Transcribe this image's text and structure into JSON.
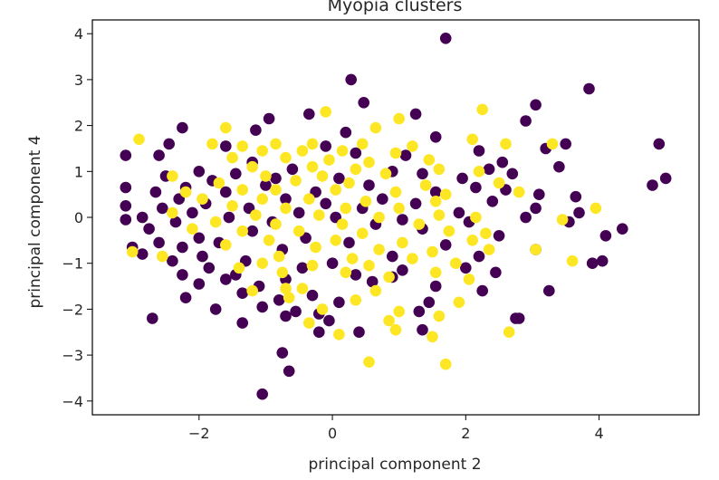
{
  "chart_data": {
    "type": "scatter",
    "title": "Myopia clusters",
    "xlabel": "principal component 2",
    "ylabel": "principal component 4",
    "xlim": [
      -3.6,
      5.5
    ],
    "ylim": [
      -4.3,
      4.3
    ],
    "x_ticks": [
      -2,
      0,
      2,
      4
    ],
    "x_tick_labels": [
      "−2",
      "0",
      "2",
      "4"
    ],
    "y_ticks": [
      4,
      3,
      2,
      1,
      0,
      -1,
      -2,
      -3,
      -4
    ],
    "y_tick_labels": [
      "4",
      "3",
      "2",
      "1",
      "0",
      "−1",
      "−2",
      "−3",
      "−4"
    ],
    "grid": false,
    "colors": {
      "cluster_0": "#440154",
      "cluster_1": "#fde725",
      "axis": "#000000"
    },
    "series": [
      {
        "color": "#440154",
        "points": [
          [
            1.7,
            3.9
          ],
          [
            0.28,
            3.0
          ],
          [
            3.85,
            2.8
          ],
          [
            0.47,
            2.5
          ],
          [
            3.05,
            2.45
          ],
          [
            -0.35,
            2.25
          ],
          [
            1.25,
            2.25
          ],
          [
            2.9,
            2.1
          ],
          [
            -0.95,
            2.15
          ],
          [
            -2.25,
            1.95
          ],
          [
            -1.15,
            1.9
          ],
          [
            0.2,
            1.85
          ],
          [
            1.55,
            1.75
          ],
          [
            4.9,
            1.6
          ],
          [
            3.5,
            1.6
          ],
          [
            -2.45,
            1.6
          ],
          [
            3.2,
            1.5
          ],
          [
            -0.1,
            1.55
          ],
          [
            -1.6,
            1.55
          ],
          [
            2.2,
            1.45
          ],
          [
            -2.6,
            1.35
          ],
          [
            -3.1,
            1.35
          ],
          [
            0.35,
            1.4
          ],
          [
            1.1,
            1.35
          ],
          [
            2.55,
            1.2
          ],
          [
            -1.2,
            1.2
          ],
          [
            3.4,
            1.1
          ],
          [
            2.35,
            1.05
          ],
          [
            -2.0,
            1.0
          ],
          [
            -0.6,
            1.05
          ],
          [
            0.9,
            1.0
          ],
          [
            -1.45,
            0.95
          ],
          [
            1.35,
            0.95
          ],
          [
            2.7,
            0.95
          ],
          [
            -2.5,
            0.9
          ],
          [
            -0.85,
            0.85
          ],
          [
            0.1,
            0.85
          ],
          [
            -1.8,
            0.8
          ],
          [
            1.95,
            0.85
          ],
          [
            5.0,
            0.85
          ],
          [
            -3.1,
            0.65
          ],
          [
            -2.2,
            0.65
          ],
          [
            -1.0,
            0.7
          ],
          [
            0.55,
            0.7
          ],
          [
            2.15,
            0.65
          ],
          [
            4.8,
            0.7
          ],
          [
            2.6,
            0.6
          ],
          [
            -2.65,
            0.55
          ],
          [
            -1.6,
            0.55
          ],
          [
            -0.25,
            0.55
          ],
          [
            1.55,
            0.55
          ],
          [
            3.1,
            0.5
          ],
          [
            3.65,
            0.45
          ],
          [
            -2.3,
            0.4
          ],
          [
            -0.7,
            0.4
          ],
          [
            0.75,
            0.4
          ],
          [
            2.4,
            0.35
          ],
          [
            -1.9,
            0.3
          ],
          [
            -0.1,
            0.3
          ],
          [
            1.25,
            0.3
          ],
          [
            -3.1,
            0.25
          ],
          [
            -2.55,
            0.2
          ],
          [
            -1.25,
            0.2
          ],
          [
            0.45,
            0.2
          ],
          [
            3.05,
            0.2
          ],
          [
            -2.1,
            0.1
          ],
          [
            -0.5,
            0.1
          ],
          [
            1.9,
            0.1
          ],
          [
            3.7,
            0.1
          ],
          [
            -2.85,
            0.0
          ],
          [
            -1.55,
            0.0
          ],
          [
            0.05,
            0.0
          ],
          [
            1.05,
            -0.05
          ],
          [
            2.9,
            0.0
          ],
          [
            -3.1,
            -0.05
          ],
          [
            -2.35,
            -0.1
          ],
          [
            -0.9,
            -0.1
          ],
          [
            0.65,
            -0.15
          ],
          [
            2.05,
            -0.1
          ],
          [
            3.55,
            -0.1
          ],
          [
            -2.75,
            -0.25
          ],
          [
            -1.2,
            -0.3
          ],
          [
            1.35,
            -0.25
          ],
          [
            4.35,
            -0.25
          ],
          [
            -2.0,
            -0.45
          ],
          [
            -0.4,
            -0.45
          ],
          [
            2.5,
            -0.4
          ],
          [
            4.1,
            -0.4
          ],
          [
            -2.6,
            -0.55
          ],
          [
            -1.7,
            -0.55
          ],
          [
            0.25,
            -0.55
          ],
          [
            1.7,
            -0.6
          ],
          [
            -3.0,
            -0.65
          ],
          [
            -2.25,
            -0.65
          ],
          [
            -0.75,
            -0.7
          ],
          [
            3.05,
            -0.7
          ],
          [
            -2.85,
            -0.8
          ],
          [
            -1.95,
            -0.85
          ],
          [
            0.9,
            -0.85
          ],
          [
            2.2,
            -0.85
          ],
          [
            -2.4,
            -0.95
          ],
          [
            -1.3,
            -0.95
          ],
          [
            0.0,
            -1.0
          ],
          [
            3.9,
            -1.0
          ],
          [
            4.05,
            -0.95
          ],
          [
            -1.85,
            -1.1
          ],
          [
            -0.45,
            -1.1
          ],
          [
            1.05,
            -1.15
          ],
          [
            2.0,
            -1.1
          ],
          [
            -2.25,
            -1.25
          ],
          [
            -1.45,
            -1.25
          ],
          [
            0.35,
            -1.25
          ],
          [
            2.45,
            -1.2
          ],
          [
            -1.6,
            -1.35
          ],
          [
            -0.7,
            -1.35
          ],
          [
            0.6,
            -1.4
          ],
          [
            -2.0,
            -1.45
          ],
          [
            -1.1,
            -1.5
          ],
          [
            1.55,
            -1.5
          ],
          [
            3.25,
            -1.6
          ],
          [
            -1.35,
            -1.65
          ],
          [
            -0.3,
            -1.7
          ],
          [
            2.25,
            -1.6
          ],
          [
            -2.2,
            -1.75
          ],
          [
            -0.8,
            -1.8
          ],
          [
            0.1,
            -1.85
          ],
          [
            1.45,
            -1.85
          ],
          [
            -1.05,
            -1.95
          ],
          [
            -0.55,
            -2.05
          ],
          [
            -1.75,
            -2.0
          ],
          [
            -0.2,
            -2.1
          ],
          [
            1.3,
            -2.05
          ],
          [
            2.8,
            -2.2
          ],
          [
            -2.7,
            -2.2
          ],
          [
            -0.7,
            -2.15
          ],
          [
            -1.35,
            -2.3
          ],
          [
            2.75,
            -2.2
          ],
          [
            -0.2,
            -2.5
          ],
          [
            0.4,
            -2.5
          ],
          [
            1.35,
            -2.45
          ],
          [
            -0.75,
            -2.95
          ],
          [
            -0.65,
            -3.35
          ],
          [
            -1.05,
            -3.85
          ],
          [
            -0.05,
            -2.25
          ],
          [
            0.9,
            -1.3
          ]
        ]
      },
      {
        "color": "#fde725",
        "points": [
          [
            -0.1,
            2.3
          ],
          [
            2.25,
            2.35
          ],
          [
            1.0,
            2.15
          ],
          [
            -1.6,
            1.95
          ],
          [
            0.65,
            1.95
          ],
          [
            2.1,
            1.7
          ],
          [
            -2.9,
            1.7
          ],
          [
            -1.8,
            1.6
          ],
          [
            -1.35,
            1.55
          ],
          [
            -0.85,
            1.6
          ],
          [
            -0.3,
            1.6
          ],
          [
            0.45,
            1.6
          ],
          [
            1.2,
            1.55
          ],
          [
            2.6,
            1.6
          ],
          [
            3.3,
            1.6
          ],
          [
            -1.05,
            1.45
          ],
          [
            -0.45,
            1.45
          ],
          [
            0.15,
            1.45
          ],
          [
            0.95,
            1.4
          ],
          [
            -1.5,
            1.3
          ],
          [
            -0.7,
            1.3
          ],
          [
            -0.05,
            1.25
          ],
          [
            0.55,
            1.2
          ],
          [
            1.45,
            1.25
          ],
          [
            -1.2,
            1.1
          ],
          [
            -0.3,
            1.1
          ],
          [
            0.35,
            1.05
          ],
          [
            1.6,
            1.05
          ],
          [
            2.2,
            1.0
          ],
          [
            -2.4,
            0.9
          ],
          [
            -1.0,
            0.9
          ],
          [
            -0.15,
            0.9
          ],
          [
            0.8,
            0.95
          ],
          [
            -1.7,
            0.75
          ],
          [
            -0.55,
            0.8
          ],
          [
            0.25,
            0.75
          ],
          [
            1.4,
            0.7
          ],
          [
            2.5,
            0.75
          ],
          [
            -2.2,
            0.55
          ],
          [
            -1.35,
            0.6
          ],
          [
            -0.85,
            0.6
          ],
          [
            0.05,
            0.6
          ],
          [
            0.95,
            0.55
          ],
          [
            1.7,
            0.5
          ],
          [
            2.8,
            0.55
          ],
          [
            -1.95,
            0.4
          ],
          [
            -1.05,
            0.4
          ],
          [
            -0.35,
            0.4
          ],
          [
            0.5,
            0.35
          ],
          [
            1.55,
            0.35
          ],
          [
            -1.5,
            0.25
          ],
          [
            -0.7,
            0.2
          ],
          [
            0.2,
            0.2
          ],
          [
            1.0,
            0.2
          ],
          [
            3.95,
            0.2
          ],
          [
            -2.4,
            0.1
          ],
          [
            -1.15,
            0.05
          ],
          [
            -0.2,
            0.05
          ],
          [
            0.7,
            0.0
          ],
          [
            1.6,
            0.05
          ],
          [
            2.15,
            0.0
          ],
          [
            -1.75,
            -0.1
          ],
          [
            -0.85,
            -0.15
          ],
          [
            0.15,
            -0.15
          ],
          [
            1.3,
            -0.15
          ],
          [
            3.45,
            -0.05
          ],
          [
            -2.1,
            -0.25
          ],
          [
            -1.35,
            -0.3
          ],
          [
            -0.5,
            -0.3
          ],
          [
            0.45,
            -0.35
          ],
          [
            1.75,
            -0.3
          ],
          [
            2.3,
            -0.35
          ],
          [
            -0.95,
            -0.5
          ],
          [
            0.05,
            -0.5
          ],
          [
            1.05,
            -0.55
          ],
          [
            2.1,
            -0.5
          ],
          [
            -1.6,
            -0.6
          ],
          [
            -0.25,
            -0.65
          ],
          [
            0.7,
            -0.7
          ],
          [
            1.5,
            -0.75
          ],
          [
            2.35,
            -0.7
          ],
          [
            3.05,
            -0.7
          ],
          [
            -0.8,
            -0.85
          ],
          [
            0.3,
            -0.9
          ],
          [
            1.2,
            -0.9
          ],
          [
            -3.0,
            -0.75
          ],
          [
            -2.55,
            -0.85
          ],
          [
            -1.05,
            -1.0
          ],
          [
            -0.3,
            -1.05
          ],
          [
            0.55,
            -1.05
          ],
          [
            1.85,
            -1.0
          ],
          [
            3.6,
            -0.95
          ],
          [
            -1.4,
            -1.1
          ],
          [
            0.2,
            -1.2
          ],
          [
            1.55,
            -1.2
          ],
          [
            -0.75,
            -1.2
          ],
          [
            0.85,
            -1.3
          ],
          [
            2.05,
            -1.35
          ],
          [
            -1.2,
            -1.6
          ],
          [
            -0.45,
            -1.55
          ],
          [
            0.65,
            -1.6
          ],
          [
            -0.65,
            -1.75
          ],
          [
            0.35,
            -1.8
          ],
          [
            1.9,
            -1.85
          ],
          [
            -0.15,
            -2.0
          ],
          [
            1.0,
            -2.05
          ],
          [
            -0.35,
            -2.3
          ],
          [
            0.85,
            -2.25
          ],
          [
            1.6,
            -2.15
          ],
          [
            2.65,
            -2.5
          ],
          [
            0.95,
            -2.45
          ],
          [
            0.1,
            -2.55
          ],
          [
            1.5,
            -2.6
          ],
          [
            0.55,
            -3.15
          ],
          [
            1.7,
            -3.2
          ],
          [
            -0.7,
            -1.55
          ]
        ]
      }
    ]
  }
}
